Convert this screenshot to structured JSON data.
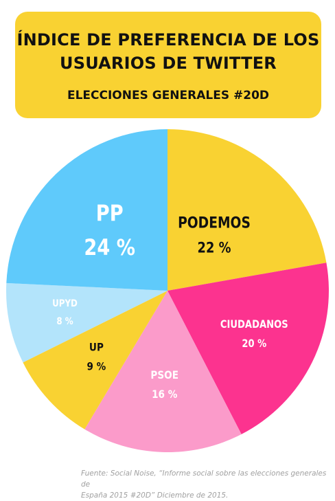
{
  "header": {
    "title_line1": "ÍNDICE DE PREFERENCIA DE LOS",
    "title_line2": "USUARIOS DE TWITTER",
    "subtitle": "ELECCIONES GENERALES #20D"
  },
  "footer": {
    "source_line1": "Fuente: Social Noise, “Informe social sobre las elecciones generales de",
    "source_line2": "España 2015 #20D” Diciembre de 2015."
  },
  "chart_data": {
    "type": "pie",
    "title": "ÍNDICE DE PREFERENCIA DE LOS USUARIOS DE TWITTER",
    "subtitle": "ELECCIONES GENERALES #20D",
    "unit": "%",
    "slices": [
      {
        "label": "PODEMOS",
        "value": 22,
        "display": "22 %",
        "color": "#f9d232",
        "text_color": "#111111"
      },
      {
        "label": "CIUDADANOS",
        "value": 20,
        "display": "20 %",
        "color": "#fc338f",
        "text_color": "#ffffff"
      },
      {
        "label": "PSOE",
        "value": 16,
        "display": "16 %",
        "color": "#fb9bca",
        "text_color": "#ffffff"
      },
      {
        "label": "UP",
        "value": 9,
        "display": "9 %",
        "color": "#f9d232",
        "text_color": "#111111"
      },
      {
        "label": "UPYD",
        "value": 8,
        "display": "8 %",
        "color": "#b3e4fb",
        "text_color": "#ffffff"
      },
      {
        "label": "PP",
        "value": 24,
        "display": "24 %",
        "color": "#5fcafb",
        "text_color": "#ffffff"
      }
    ]
  }
}
